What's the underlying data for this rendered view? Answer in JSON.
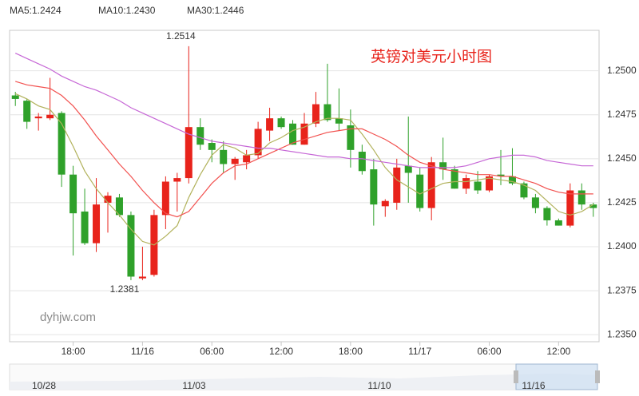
{
  "chart_data": {
    "type": "candlestick",
    "title": "英镑对美元小时图",
    "watermark": "dyhjw.com",
    "categories": [
      null,
      null,
      null,
      null,
      null,
      "18:00",
      null,
      null,
      null,
      null,
      null,
      "11/16",
      null,
      null,
      null,
      null,
      null,
      "06:00",
      null,
      null,
      null,
      null,
      null,
      "12:00",
      null,
      null,
      null,
      null,
      null,
      "18:00",
      null,
      null,
      null,
      null,
      null,
      "11/17",
      null,
      null,
      null,
      null,
      null,
      "06:00",
      null,
      null,
      null,
      null,
      null,
      "12:00",
      null,
      null,
      null
    ],
    "open": [
      1.2486,
      1.2483,
      1.2473,
      1.2473,
      1.2476,
      1.2441,
      1.242,
      1.2402,
      1.2425,
      1.2428,
      1.2418,
      1.2382,
      1.2384,
      1.2418,
      1.2437,
      1.2439,
      1.2468,
      1.2459,
      1.2455,
      1.2447,
      1.2448,
      1.2452,
      1.2466,
      1.2473,
      1.247,
      1.2458,
      1.247,
      1.2481,
      1.2473,
      1.2469,
      1.2454,
      1.2444,
      1.2423,
      1.2425,
      1.2446,
      1.2441,
      1.2422,
      1.2448,
      1.2444,
      1.2433,
      1.2437,
      1.2432,
      1.2441,
      1.244,
      1.2436,
      1.2428,
      1.2422,
      1.2415,
      1.2412,
      1.2432,
      1.2424
    ],
    "high": [
      1.2488,
      1.2484,
      1.2476,
      1.2496,
      1.2477,
      1.2446,
      1.2433,
      1.2439,
      1.2431,
      1.243,
      1.242,
      1.24,
      1.2421,
      1.244,
      1.2442,
      1.2514,
      1.2473,
      1.2461,
      1.246,
      1.2451,
      1.2455,
      1.2471,
      1.2479,
      1.2474,
      1.2472,
      1.2476,
      1.2488,
      1.2504,
      1.249,
      1.2478,
      1.2458,
      1.245,
      1.2427,
      1.245,
      1.2474,
      1.2445,
      1.2451,
      1.2462,
      1.2446,
      1.2441,
      1.2443,
      1.2441,
      1.2455,
      1.2456,
      1.2437,
      1.243,
      1.2423,
      1.2416,
      1.2436,
      1.2436,
      1.2425
    ],
    "low": [
      1.248,
      1.2467,
      1.2466,
      1.2472,
      1.2434,
      1.2395,
      1.2401,
      1.2397,
      1.2408,
      1.2417,
      1.2381,
      1.2381,
      1.2383,
      1.241,
      1.242,
      1.2436,
      1.2455,
      1.2448,
      1.2442,
      1.2438,
      1.2444,
      1.245,
      1.246,
      1.2467,
      1.2458,
      1.2458,
      1.2468,
      1.2471,
      1.2466,
      1.2445,
      1.2441,
      1.2412,
      1.2417,
      1.2421,
      1.2425,
      1.242,
      1.2415,
      1.2438,
      1.2433,
      1.243,
      1.243,
      1.2431,
      1.2435,
      1.2435,
      1.2427,
      1.2419,
      1.2412,
      1.2412,
      1.2411,
      1.2421,
      1.2417
    ],
    "close": [
      1.2484,
      1.2471,
      1.2474,
      1.2475,
      1.2441,
      1.2419,
      1.2402,
      1.2424,
      1.2429,
      1.2418,
      1.2383,
      1.2383,
      1.2418,
      1.2437,
      1.2439,
      1.2468,
      1.2458,
      1.2455,
      1.2447,
      1.245,
      1.2452,
      1.2467,
      1.2473,
      1.2468,
      1.2458,
      1.247,
      1.2481,
      1.2472,
      1.247,
      1.2455,
      1.2443,
      1.2424,
      1.2426,
      1.2445,
      1.2442,
      1.2422,
      1.2448,
      1.2444,
      1.2433,
      1.2439,
      1.2432,
      1.244,
      1.244,
      1.2436,
      1.2428,
      1.2422,
      1.2415,
      1.2412,
      1.2432,
      1.2424,
      1.2422
    ],
    "up_color": "#e8231b",
    "down_color": "#2fa12a",
    "series": [
      {
        "name": "MA5:1.2424",
        "color": "#b2b25c",
        "values": [
          1.2487,
          1.2484,
          1.248,
          1.2478,
          1.247,
          1.2457,
          1.2443,
          1.2433,
          1.2425,
          1.2418,
          1.241,
          1.2403,
          1.2401,
          1.2406,
          1.2412,
          1.2428,
          1.2441,
          1.2452,
          1.2458,
          1.2456,
          1.2452,
          1.2453,
          1.2459,
          1.2462,
          1.2466,
          1.2468,
          1.2471,
          1.2473,
          1.2473,
          1.2472,
          1.2464,
          1.2455,
          1.2445,
          1.2438,
          1.2434,
          1.243,
          1.2433,
          1.2436,
          1.2437,
          1.2437,
          1.2438,
          1.2439,
          1.2438,
          1.2437,
          1.2435,
          1.2432,
          1.2426,
          1.242,
          1.2418,
          1.242,
          1.2424
        ]
      },
      {
        "name": "MA10:1.2430",
        "color": "#f2514f",
        "values": [
          1.2494,
          1.2492,
          1.2491,
          1.249,
          1.2486,
          1.248,
          1.2472,
          1.2463,
          1.2455,
          1.2447,
          1.244,
          1.2432,
          1.2425,
          1.2419,
          1.2417,
          1.242,
          1.2428,
          1.2436,
          1.2442,
          1.2446,
          1.2447,
          1.245,
          1.2453,
          1.2456,
          1.2459,
          1.2461,
          1.2463,
          1.2465,
          1.2466,
          1.2467,
          1.2467,
          1.2464,
          1.2461,
          1.2457,
          1.2452,
          1.2448,
          1.2446,
          1.2444,
          1.2443,
          1.2442,
          1.2441,
          1.2441,
          1.244,
          1.244,
          1.2438,
          1.2436,
          1.2433,
          1.2431,
          1.243,
          1.243,
          1.243
        ]
      },
      {
        "name": "MA30:1.2446",
        "color": "#c667d6",
        "values": [
          1.251,
          1.2507,
          1.2504,
          1.2501,
          1.2497,
          1.2494,
          1.2491,
          1.2489,
          1.2486,
          1.2483,
          1.2479,
          1.2476,
          1.2473,
          1.247,
          1.2467,
          1.2464,
          1.2462,
          1.246,
          1.2459,
          1.2458,
          1.2457,
          1.2456,
          1.2456,
          1.2455,
          1.2454,
          1.2453,
          1.2452,
          1.2451,
          1.2451,
          1.245,
          1.245,
          1.2449,
          1.2448,
          1.2447,
          1.2446,
          1.2445,
          1.2445,
          1.2445,
          1.2445,
          1.2446,
          1.2448,
          1.245,
          1.2451,
          1.2452,
          1.2452,
          1.2451,
          1.2449,
          1.2448,
          1.2447,
          1.2446,
          1.2446
        ]
      }
    ],
    "annotations": [
      {
        "value": 1.2514,
        "label": "1.2514"
      },
      {
        "value": 1.2381,
        "label": "1.2381"
      }
    ],
    "ylim": [
      1.2346,
      1.2523
    ],
    "yticks": [
      {
        "value": 1.235,
        "label": "1.2350"
      },
      1.2375,
      {
        "value": 1.24,
        "label": "1.2400"
      },
      1.2425,
      {
        "value": 1.245,
        "label": "1.2450"
      },
      1.2475,
      {
        "value": 1.25,
        "label": "1.2500"
      }
    ],
    "grid": true,
    "navigator": {
      "labels": [
        "10/28",
        "11/03",
        "11/10",
        "11/16"
      ]
    }
  }
}
